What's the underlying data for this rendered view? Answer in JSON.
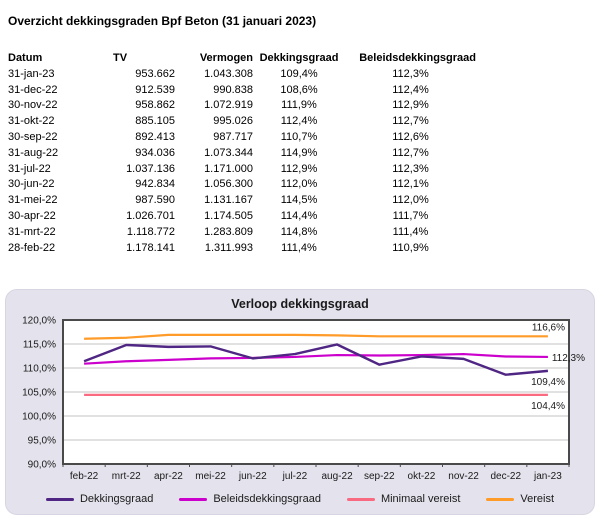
{
  "report": {
    "title": "Overzicht dekkingsgraden Bpf Beton (31 januari 2023)"
  },
  "table": {
    "headers": [
      "Datum",
      "TV",
      "Vermogen",
      "Dekkingsgraad",
      "Beleidsdekkingsgraad"
    ],
    "rows": [
      [
        "31-jan-23",
        "953.662",
        "1.043.308",
        "109,4%",
        "112,3%"
      ],
      [
        "31-dec-22",
        "912.539",
        "990.838",
        "108,6%",
        "112,4%"
      ],
      [
        "30-nov-22",
        "958.862",
        "1.072.919",
        "111,9%",
        "112,9%"
      ],
      [
        "31-okt-22",
        "885.105",
        "995.026",
        "112,4%",
        "112,7%"
      ],
      [
        "30-sep-22",
        "892.413",
        "987.717",
        "110,7%",
        "112,6%"
      ],
      [
        "31-aug-22",
        "934.036",
        "1.073.344",
        "114,9%",
        "112,7%"
      ],
      [
        "31-jul-22",
        "1.037.136",
        "1.171.000",
        "112,9%",
        "112,3%"
      ],
      [
        "30-jun-22",
        "942.834",
        "1.056.300",
        "112,0%",
        "112,1%"
      ],
      [
        "31-mei-22",
        "987.590",
        "1.131.167",
        "114,5%",
        "112,0%"
      ],
      [
        "30-apr-22",
        "1.026.701",
        "1.174.505",
        "114,4%",
        "111,7%"
      ],
      [
        "31-mrt-22",
        "1.118.772",
        "1.283.809",
        "114,8%",
        "111,4%"
      ],
      [
        "28-feb-22",
        "1.178.141",
        "1.311.993",
        "111,4%",
        "110,9%"
      ]
    ]
  },
  "chart_data": {
    "type": "line",
    "title": "Verloop dekkingsgraad",
    "categories": [
      "feb-22",
      "mrt-22",
      "apr-22",
      "mei-22",
      "jun-22",
      "jul-22",
      "aug-22",
      "sep-22",
      "okt-22",
      "nov-22",
      "dec-22",
      "jan-23"
    ],
    "series": [
      {
        "name": "Dekkingsgraad",
        "color": "#4f2683",
        "values": [
          111.4,
          114.8,
          114.4,
          114.5,
          112.0,
          112.9,
          114.9,
          110.7,
          112.4,
          111.9,
          108.6,
          109.4
        ],
        "end_label": "109,4%",
        "label_placement": "below"
      },
      {
        "name": "Beleidsdekkingsgraad",
        "color": "#cc00cc",
        "values": [
          110.9,
          111.4,
          111.7,
          112.0,
          112.1,
          112.3,
          112.7,
          112.6,
          112.7,
          112.9,
          112.4,
          112.3
        ],
        "end_label": "112,3%",
        "label_placement": "right"
      },
      {
        "name": "Minimaal vereist",
        "color": "#f96a80",
        "values": [
          104.4,
          104.4,
          104.4,
          104.4,
          104.4,
          104.4,
          104.4,
          104.4,
          104.4,
          104.4,
          104.4,
          104.4
        ],
        "end_label": "104,4%",
        "label_placement": "below"
      },
      {
        "name": "Vereist",
        "color": "#ff9b28",
        "values": [
          116.1,
          116.3,
          116.9,
          116.9,
          116.9,
          116.9,
          116.8,
          116.6,
          116.6,
          116.6,
          116.6,
          116.6
        ],
        "end_label": "116,6%",
        "label_placement": "above"
      }
    ],
    "ylim": [
      90,
      120
    ],
    "y_tick_step": 5,
    "y_tick_labels": [
      "120,0%",
      "115,0%",
      "110,0%",
      "105,0%",
      "100,0%",
      "95,0%",
      "90,0%"
    ],
    "grid": true,
    "legend_position": "bottom",
    "colors": {
      "panel_bg": "#e4e2ec",
      "plot_bg": "#ffffff",
      "plot_border": "#4a4a4a",
      "gridline": "#c3c3c3",
      "text": "#1a1a1a"
    }
  }
}
